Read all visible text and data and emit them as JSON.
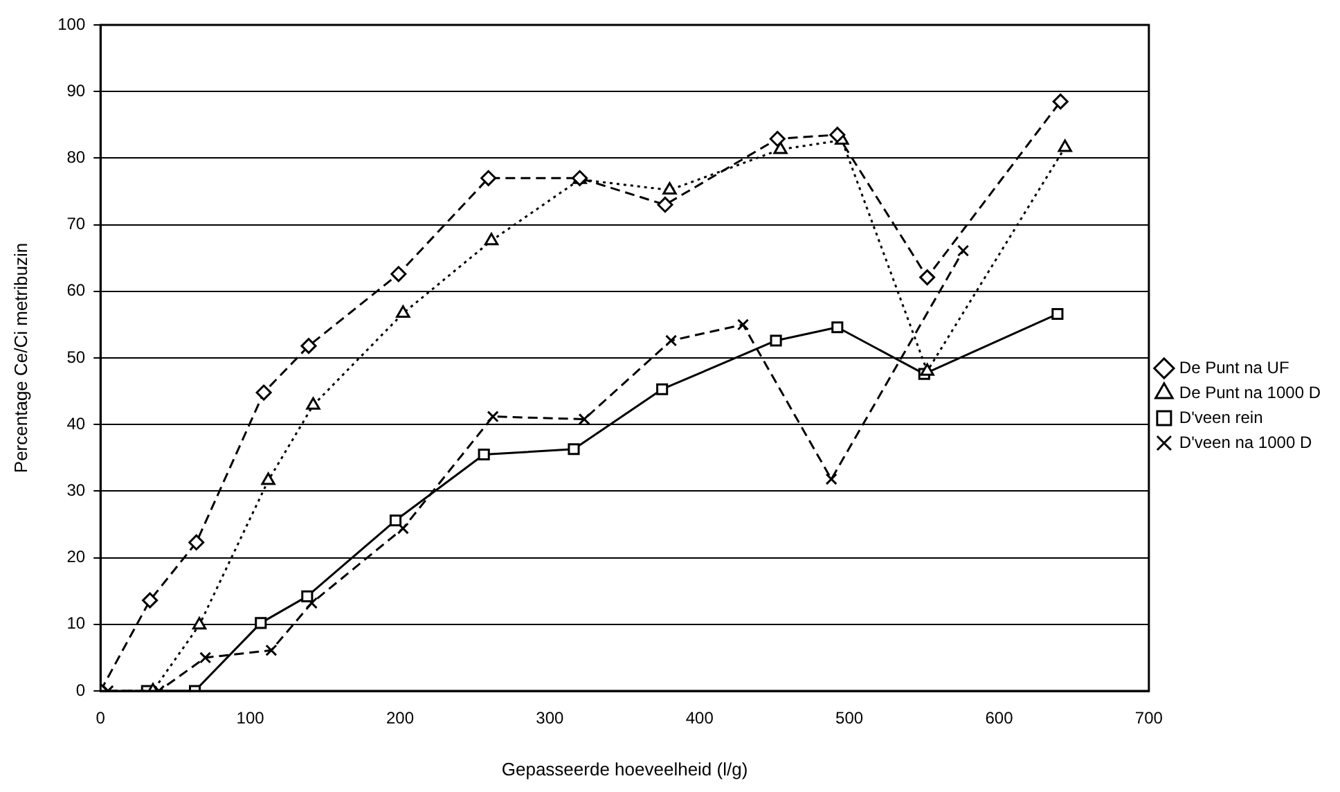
{
  "chart_data": {
    "type": "line",
    "xlabel": "Gepasseerde hoeveelheid (l/g)",
    "ylabel": "Percentage Ce/Ci metribuzin",
    "xlim": [
      0,
      700
    ],
    "xticks": [
      0,
      100,
      200,
      300,
      400,
      500,
      600,
      700
    ],
    "ylim": [
      0,
      100
    ],
    "yticks": [
      0,
      10,
      20,
      30,
      40,
      50,
      60,
      70,
      80,
      90,
      100
    ],
    "grid": "y",
    "legend": "right",
    "series": [
      {
        "name": "De Punt na UF",
        "color": "#000000",
        "marker": "diamond",
        "line_style": "dashed",
        "x": [
          0,
          33,
          64,
          109,
          139,
          199,
          259,
          320,
          377,
          452,
          492,
          552,
          641
        ],
        "values": [
          0,
          13.6,
          22.3,
          44.8,
          51.8,
          62.6,
          77,
          77,
          73,
          82.9,
          83.5,
          62.1,
          88.5
        ]
      },
      {
        "name": "De Punt na 1000 D",
        "color": "#000000",
        "marker": "triangle",
        "line_style": "dotted",
        "x": [
          0,
          35,
          66,
          112,
          142,
          202,
          261,
          320,
          380,
          454,
          495,
          552,
          644
        ],
        "values": [
          0,
          0,
          9.9,
          31.6,
          42.9,
          56.7,
          67.6,
          76.8,
          75.2,
          81.3,
          82.7,
          48,
          81.6
        ]
      },
      {
        "name": "D'veen rein",
        "color": "#000000",
        "marker": "square",
        "line_style": "solid",
        "x": [
          31,
          63,
          107,
          138,
          197,
          256,
          316,
          375,
          451,
          492,
          550,
          639
        ],
        "values": [
          0,
          0,
          10.2,
          14.2,
          25.6,
          35.5,
          36.3,
          45.3,
          52.6,
          54.6,
          47.6,
          56.6
        ]
      },
      {
        "name": "D'veen na 1000 D",
        "color": "#000000",
        "marker": "cross",
        "line_style": "dashed",
        "x": [
          5,
          39,
          70,
          114,
          141,
          202,
          262,
          323,
          381,
          429,
          488,
          576
        ],
        "values": [
          0,
          0,
          5,
          6.1,
          13.2,
          24.4,
          41.2,
          40.8,
          52.6,
          55,
          31.8,
          66.1
        ]
      }
    ]
  }
}
